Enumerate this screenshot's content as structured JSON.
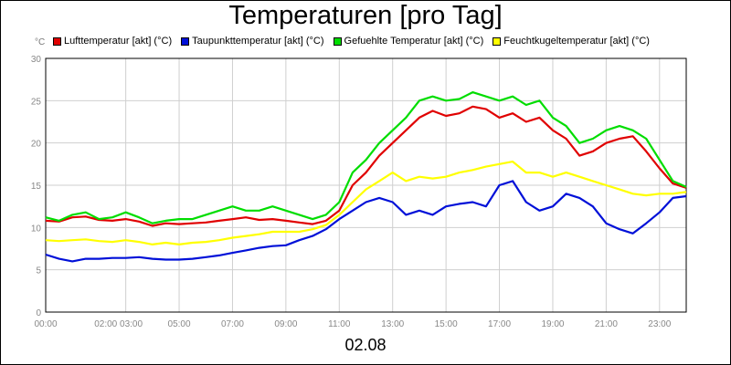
{
  "chart_data": {
    "type": "line",
    "title": "Temperaturen [pro Tag]",
    "y_unit": "°C",
    "date_label": "02.08",
    "ylim": [
      0,
      30
    ],
    "yticks": [
      0,
      5,
      10,
      15,
      20,
      25,
      30
    ],
    "xlim": [
      0,
      24
    ],
    "xticks": [
      {
        "x": 0,
        "label": "00:00"
      },
      {
        "x": 3,
        "label": "02:00 03:00"
      },
      {
        "x": 5,
        "label": "05:00"
      },
      {
        "x": 7,
        "label": "07:00"
      },
      {
        "x": 9,
        "label": "09:00"
      },
      {
        "x": 11,
        "label": "11:00"
      },
      {
        "x": 13,
        "label": "13:00"
      },
      {
        "x": 15,
        "label": "15:00"
      },
      {
        "x": 17,
        "label": "17:00"
      },
      {
        "x": 19,
        "label": "19:00"
      },
      {
        "x": 21,
        "label": "21:00"
      },
      {
        "x": 23,
        "label": "23:00"
      }
    ],
    "grid": true,
    "legend_position": "top",
    "series": [
      {
        "name": "Lufttemperatur [akt] (°C)",
        "color": "#e00000",
        "points": [
          [
            0,
            10.8
          ],
          [
            0.5,
            10.7
          ],
          [
            1,
            11.2
          ],
          [
            1.5,
            11.3
          ],
          [
            2,
            10.9
          ],
          [
            2.5,
            10.8
          ],
          [
            3,
            11.0
          ],
          [
            3.5,
            10.7
          ],
          [
            4,
            10.2
          ],
          [
            4.5,
            10.5
          ],
          [
            5,
            10.4
          ],
          [
            5.5,
            10.5
          ],
          [
            6,
            10.6
          ],
          [
            6.5,
            10.8
          ],
          [
            7,
            11.0
          ],
          [
            7.5,
            11.2
          ],
          [
            8,
            10.9
          ],
          [
            8.5,
            11.0
          ],
          [
            9,
            10.8
          ],
          [
            9.5,
            10.6
          ],
          [
            10,
            10.4
          ],
          [
            10.5,
            10.8
          ],
          [
            11,
            12.0
          ],
          [
            11.5,
            15.0
          ],
          [
            12,
            16.5
          ],
          [
            12.5,
            18.5
          ],
          [
            13,
            20.0
          ],
          [
            13.5,
            21.5
          ],
          [
            14,
            23.0
          ],
          [
            14.5,
            23.8
          ],
          [
            15,
            23.2
          ],
          [
            15.5,
            23.5
          ],
          [
            16,
            24.3
          ],
          [
            16.5,
            24.0
          ],
          [
            17,
            23.0
          ],
          [
            17.5,
            23.5
          ],
          [
            18,
            22.5
          ],
          [
            18.5,
            23.0
          ],
          [
            19,
            21.5
          ],
          [
            19.5,
            20.5
          ],
          [
            20,
            18.5
          ],
          [
            20.5,
            19.0
          ],
          [
            21,
            20.0
          ],
          [
            21.5,
            20.5
          ],
          [
            22,
            20.8
          ],
          [
            22.5,
            19.0
          ],
          [
            23,
            17.0
          ],
          [
            23.5,
            15.2
          ],
          [
            24,
            14.7
          ]
        ]
      },
      {
        "name": "Taupunkttemperatur [akt] (°C)",
        "color": "#0010d8",
        "points": [
          [
            0,
            6.8
          ],
          [
            0.5,
            6.3
          ],
          [
            1,
            6.0
          ],
          [
            1.5,
            6.3
          ],
          [
            2,
            6.3
          ],
          [
            2.5,
            6.4
          ],
          [
            3,
            6.4
          ],
          [
            3.5,
            6.5
          ],
          [
            4,
            6.3
          ],
          [
            4.5,
            6.2
          ],
          [
            5,
            6.2
          ],
          [
            5.5,
            6.3
          ],
          [
            6,
            6.5
          ],
          [
            6.5,
            6.7
          ],
          [
            7,
            7.0
          ],
          [
            7.5,
            7.3
          ],
          [
            8,
            7.6
          ],
          [
            8.5,
            7.8
          ],
          [
            9,
            7.9
          ],
          [
            9.5,
            8.5
          ],
          [
            10,
            9.0
          ],
          [
            10.5,
            9.8
          ],
          [
            11,
            11.0
          ],
          [
            11.5,
            12.0
          ],
          [
            12,
            13.0
          ],
          [
            12.5,
            13.5
          ],
          [
            13,
            13.0
          ],
          [
            13.5,
            11.5
          ],
          [
            14,
            12.0
          ],
          [
            14.5,
            11.5
          ],
          [
            15,
            12.5
          ],
          [
            15.5,
            12.8
          ],
          [
            16,
            13.0
          ],
          [
            16.5,
            12.5
          ],
          [
            17,
            15.0
          ],
          [
            17.5,
            15.5
          ],
          [
            18,
            13.0
          ],
          [
            18.5,
            12.0
          ],
          [
            19,
            12.5
          ],
          [
            19.5,
            14.0
          ],
          [
            20,
            13.5
          ],
          [
            20.5,
            12.5
          ],
          [
            21,
            10.5
          ],
          [
            21.5,
            9.8
          ],
          [
            22,
            9.3
          ],
          [
            22.5,
            10.5
          ],
          [
            23,
            11.8
          ],
          [
            23.5,
            13.5
          ],
          [
            24,
            13.7
          ]
        ]
      },
      {
        "name": "Gefuehlte Temperatur [akt] (°C)",
        "color": "#00dd00",
        "points": [
          [
            0,
            11.2
          ],
          [
            0.5,
            10.8
          ],
          [
            1,
            11.5
          ],
          [
            1.5,
            11.8
          ],
          [
            2,
            11.0
          ],
          [
            2.5,
            11.2
          ],
          [
            3,
            11.8
          ],
          [
            3.5,
            11.2
          ],
          [
            4,
            10.5
          ],
          [
            4.5,
            10.8
          ],
          [
            5,
            11.0
          ],
          [
            5.5,
            11.0
          ],
          [
            6,
            11.5
          ],
          [
            6.5,
            12.0
          ],
          [
            7,
            12.5
          ],
          [
            7.5,
            12.0
          ],
          [
            8,
            12.0
          ],
          [
            8.5,
            12.5
          ],
          [
            9,
            12.0
          ],
          [
            9.5,
            11.5
          ],
          [
            10,
            11.0
          ],
          [
            10.5,
            11.5
          ],
          [
            11,
            13.0
          ],
          [
            11.5,
            16.5
          ],
          [
            12,
            18.0
          ],
          [
            12.5,
            20.0
          ],
          [
            13,
            21.5
          ],
          [
            13.5,
            23.0
          ],
          [
            14,
            25.0
          ],
          [
            14.5,
            25.5
          ],
          [
            15,
            25.0
          ],
          [
            15.5,
            25.2
          ],
          [
            16,
            26.0
          ],
          [
            16.5,
            25.5
          ],
          [
            17,
            25.0
          ],
          [
            17.5,
            25.5
          ],
          [
            18,
            24.5
          ],
          [
            18.5,
            25.0
          ],
          [
            19,
            23.0
          ],
          [
            19.5,
            22.0
          ],
          [
            20,
            20.0
          ],
          [
            20.5,
            20.5
          ],
          [
            21,
            21.5
          ],
          [
            21.5,
            22.0
          ],
          [
            22,
            21.5
          ],
          [
            22.5,
            20.5
          ],
          [
            23,
            18.0
          ],
          [
            23.5,
            15.5
          ],
          [
            24,
            14.8
          ]
        ]
      },
      {
        "name": "Feuchtkugeltemperatur [akt] (°C)",
        "color": "#ffff00",
        "points": [
          [
            0,
            8.5
          ],
          [
            0.5,
            8.4
          ],
          [
            1,
            8.5
          ],
          [
            1.5,
            8.6
          ],
          [
            2,
            8.4
          ],
          [
            2.5,
            8.3
          ],
          [
            3,
            8.5
          ],
          [
            3.5,
            8.3
          ],
          [
            4,
            8.0
          ],
          [
            4.5,
            8.2
          ],
          [
            5,
            8.0
          ],
          [
            5.5,
            8.2
          ],
          [
            6,
            8.3
          ],
          [
            6.5,
            8.5
          ],
          [
            7,
            8.8
          ],
          [
            7.5,
            9.0
          ],
          [
            8,
            9.2
          ],
          [
            8.5,
            9.5
          ],
          [
            9,
            9.5
          ],
          [
            9.5,
            9.5
          ],
          [
            10,
            9.8
          ],
          [
            10.5,
            10.3
          ],
          [
            11,
            11.5
          ],
          [
            11.5,
            13.0
          ],
          [
            12,
            14.5
          ],
          [
            12.5,
            15.5
          ],
          [
            13,
            16.5
          ],
          [
            13.5,
            15.5
          ],
          [
            14,
            16.0
          ],
          [
            14.5,
            15.8
          ],
          [
            15,
            16.0
          ],
          [
            15.5,
            16.5
          ],
          [
            16,
            16.8
          ],
          [
            16.5,
            17.2
          ],
          [
            17,
            17.5
          ],
          [
            17.5,
            17.8
          ],
          [
            18,
            16.5
          ],
          [
            18.5,
            16.5
          ],
          [
            19,
            16.0
          ],
          [
            19.5,
            16.5
          ],
          [
            20,
            16.0
          ],
          [
            20.5,
            15.5
          ],
          [
            21,
            15.0
          ],
          [
            21.5,
            14.5
          ],
          [
            22,
            14.0
          ],
          [
            22.5,
            13.8
          ],
          [
            23,
            14.0
          ],
          [
            23.5,
            14.0
          ],
          [
            24,
            14.2
          ]
        ]
      }
    ]
  }
}
